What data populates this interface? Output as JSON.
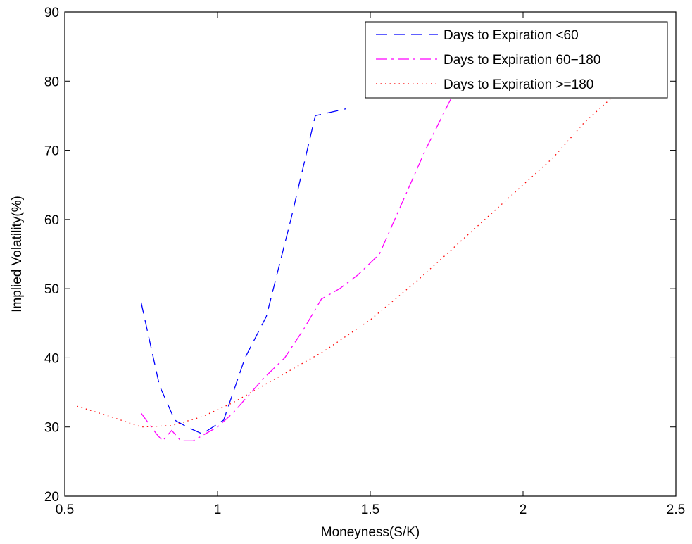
{
  "chart_data": {
    "type": "line",
    "xlabel": "Moneyness(S/K)",
    "ylabel": "Implied Volatility(%)",
    "xlim": [
      0.5,
      2.5
    ],
    "ylim": [
      20,
      90
    ],
    "x_ticks": [
      0.5,
      1,
      1.5,
      2,
      2.5
    ],
    "x_tick_labels": [
      "0.5",
      "1",
      "1.5",
      "2",
      "2.5"
    ],
    "y_ticks": [
      20,
      30,
      40,
      50,
      60,
      70,
      80,
      90
    ],
    "y_tick_labels": [
      "20",
      "30",
      "40",
      "50",
      "60",
      "70",
      "80",
      "90"
    ],
    "grid": false,
    "legend_position": "top-right",
    "series": [
      {
        "name": "Days to Expiration <60",
        "color": "#0000ff",
        "dash": "dashed",
        "x": [
          0.75,
          0.81,
          0.86,
          0.9,
          0.95,
          1.02,
          1.09,
          1.16,
          1.24,
          1.32,
          1.42
        ],
        "y": [
          48,
          36,
          31,
          30,
          29,
          31,
          40,
          46,
          60,
          75,
          76
        ]
      },
      {
        "name": "Days to Expiration 60−180",
        "color": "#ff00ff",
        "dash": "dashdot",
        "x": [
          0.75,
          0.8,
          0.82,
          0.85,
          0.88,
          0.92,
          0.96,
          1.0,
          1.05,
          1.1,
          1.15,
          1.22,
          1.28,
          1.34,
          1.4,
          1.46,
          1.53,
          1.6,
          1.68,
          1.77
        ],
        "y": [
          32,
          29,
          28,
          29.5,
          28,
          28,
          29,
          30,
          32,
          34.5,
          37,
          40,
          44,
          48.5,
          50,
          52,
          55,
          62,
          70,
          78
        ]
      },
      {
        "name": "Days to Expiration >=180",
        "color": "#ff0000",
        "dash": "dotted",
        "x": [
          0.54,
          0.65,
          0.75,
          0.85,
          0.95,
          1.05,
          1.15,
          1.25,
          1.35,
          1.5,
          1.65,
          1.8,
          1.95,
          2.1,
          2.2,
          2.3
        ],
        "y": [
          33,
          31.5,
          30,
          30.2,
          31.5,
          33.5,
          36,
          38.5,
          41,
          45.5,
          51,
          57,
          63,
          69,
          74,
          78
        ]
      }
    ]
  }
}
